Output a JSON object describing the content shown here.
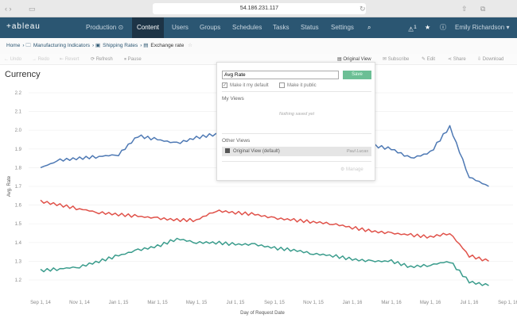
{
  "browser": {
    "url": "54.186.231.117"
  },
  "nav": {
    "logo": "+ableau",
    "items": [
      "Production ⊙",
      "Content",
      "Users",
      "Groups",
      "Schedules",
      "Tasks",
      "Status",
      "Settings"
    ],
    "active": "Content",
    "alerts": "1",
    "user": "Emily Richardson ▾"
  },
  "breadcrumb": [
    "Home",
    "Manufacturing Indicators",
    "Shipping Rates",
    "Exchange rate"
  ],
  "toolbar": {
    "undo": "Undo",
    "redo": "Redo",
    "revert": "Revert",
    "refresh": "Refresh",
    "pause": "Pause",
    "original_view": "Original View",
    "subscribe": "Subscribe",
    "edit": "Edit",
    "share": "Share",
    "download": "Download"
  },
  "sheet_title": "Currency",
  "popup": {
    "input_value": "Avg Rate",
    "save": "Save",
    "make_default": "Make it my default",
    "make_default_checked": true,
    "make_public": "Make it public",
    "make_public_checked": false,
    "my_views": "My Views",
    "nothing_saved": "Nothing saved yet",
    "other_views": "Other Views",
    "original_view": "Original View (default)",
    "author": "Paul Lucas",
    "manage": "Manage"
  },
  "chart_data": {
    "type": "line",
    "xlabel": "Day of Request Date",
    "ylabel": "Avg. Rate",
    "x_ticks": [
      "Sep 1, 14",
      "Nov 1, 14",
      "Jan 1, 15",
      "Mar 1, 15",
      "May 1, 15",
      "Jul 1, 15",
      "Sep 1, 15",
      "Nov 1, 15",
      "Jan 1, 16",
      "Mar 1, 16",
      "May 1, 16",
      "Jul 1, 16",
      "Sep 1, 16"
    ],
    "y_ticks": [
      "1.2",
      "1.3",
      "1.4",
      "1.5",
      "1.6",
      "1.7",
      "1.8",
      "1.9",
      "2.0",
      "2.1",
      "2.2"
    ],
    "ylim": [
      1.2,
      2.2
    ],
    "x_months": [
      "2014-09",
      "2014-10",
      "2014-11",
      "2014-12",
      "2015-01",
      "2015-02",
      "2015-03",
      "2015-04",
      "2015-05",
      "2015-06",
      "2015-07",
      "2015-08",
      "2015-09",
      "2015-10",
      "2015-11",
      "2015-12",
      "2016-01",
      "2016-02",
      "2016-03",
      "2016-04",
      "2016-05",
      "2016-06",
      "2016-07",
      "2016-08"
    ],
    "series": [
      {
        "color": "#4e79b4",
        "values": [
          1.8,
          1.84,
          1.85,
          1.86,
          1.87,
          1.97,
          1.95,
          1.93,
          1.96,
          1.98,
          1.97,
          1.96,
          1.95,
          1.94,
          1.93,
          1.92,
          1.93,
          1.92,
          1.9,
          1.85,
          1.88,
          2.02,
          1.75,
          1.7
        ]
      },
      {
        "color": "#e0524a",
        "values": [
          1.62,
          1.6,
          1.58,
          1.56,
          1.55,
          1.54,
          1.53,
          1.52,
          1.52,
          1.57,
          1.56,
          1.55,
          1.53,
          1.52,
          1.51,
          1.5,
          1.48,
          1.46,
          1.45,
          1.44,
          1.43,
          1.45,
          1.33,
          1.3
        ]
      },
      {
        "color": "#3a9c8c",
        "values": [
          1.25,
          1.26,
          1.27,
          1.3,
          1.33,
          1.36,
          1.38,
          1.42,
          1.4,
          1.4,
          1.39,
          1.39,
          1.37,
          1.36,
          1.34,
          1.33,
          1.31,
          1.3,
          1.3,
          1.27,
          1.28,
          1.3,
          1.19,
          1.17
        ]
      }
    ]
  }
}
